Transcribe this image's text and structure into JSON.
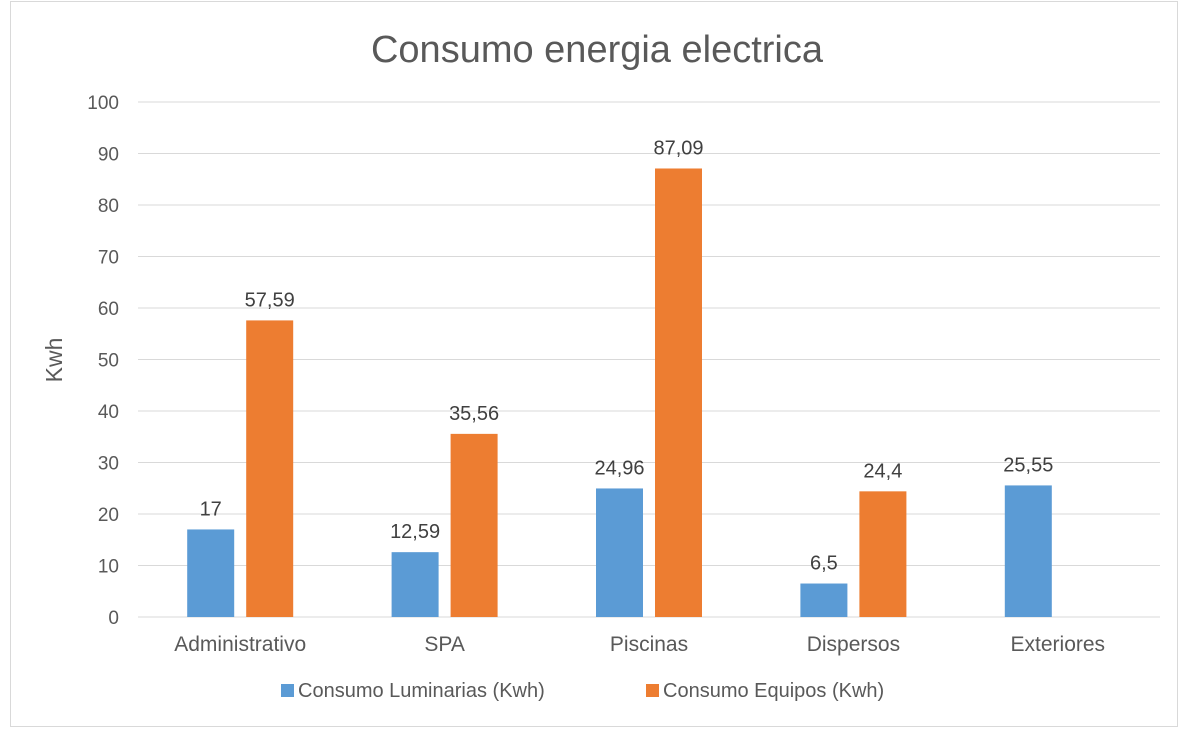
{
  "chart_data": {
    "type": "bar",
    "title": "Consumo energia electrica",
    "xlabel": "",
    "ylabel": "Kwh",
    "ylim": [
      0,
      100
    ],
    "yticks": [
      0,
      10,
      20,
      30,
      40,
      50,
      60,
      70,
      80,
      90,
      100
    ],
    "grid": true,
    "legend_position": "bottom",
    "categories": [
      "Administrativo",
      "SPA",
      "Piscinas",
      "Dispersos",
      "Exteriores"
    ],
    "series": [
      {
        "name": "Consumo Luminarias (Kwh)",
        "color": "#5b9bd5",
        "values": [
          17,
          12.59,
          24.96,
          6.5,
          25.55
        ],
        "labels": [
          "17",
          "12,59",
          "24,96",
          "6,5",
          "25,55"
        ]
      },
      {
        "name": "Consumo Equipos (Kwh)",
        "color": "#ed7d31",
        "values": [
          57.59,
          35.56,
          87.09,
          24.4,
          null
        ],
        "labels": [
          "57,59",
          "35,56",
          "87,09",
          "24,4",
          null
        ]
      }
    ]
  }
}
